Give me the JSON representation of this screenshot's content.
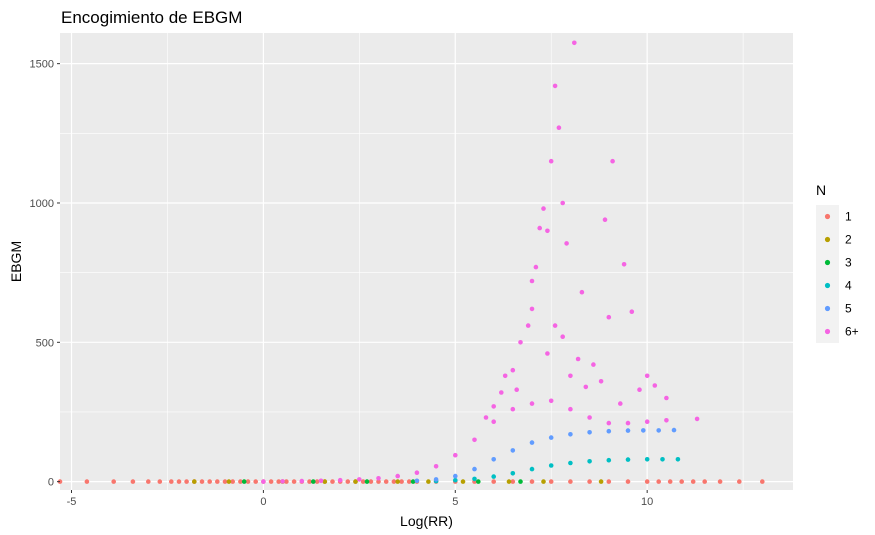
{
  "chart_data": {
    "type": "scatter",
    "title": "Encogimiento de EBGM",
    "xlabel": "Log(RR)",
    "ylabel": "EBGM",
    "xlim": [
      -5.3,
      13.8
    ],
    "ylim": [
      -30,
      1610
    ],
    "x_ticks": [
      -5,
      0,
      5,
      10
    ],
    "x_tick_labels": [
      "-5",
      "0",
      "5",
      "10"
    ],
    "y_ticks": [
      0,
      500,
      1000,
      1500
    ],
    "y_tick_labels": [
      "0",
      "500",
      "1000",
      "1500"
    ],
    "grid": true,
    "legend": {
      "title": "N",
      "position": "right"
    },
    "series": [
      {
        "name": "1",
        "color": "#F8766D",
        "points": [
          [
            -5.3,
            0
          ],
          [
            -4.6,
            0
          ],
          [
            -3.9,
            0
          ],
          [
            -3.4,
            0
          ],
          [
            -3.0,
            0
          ],
          [
            -2.7,
            0
          ],
          [
            -2.4,
            0
          ],
          [
            -2.2,
            0
          ],
          [
            -2.0,
            0
          ],
          [
            -1.8,
            0
          ],
          [
            -1.6,
            0
          ],
          [
            -1.4,
            0
          ],
          [
            -1.2,
            0
          ],
          [
            -1.0,
            0
          ],
          [
            -0.8,
            0
          ],
          [
            -0.6,
            0
          ],
          [
            -0.4,
            0
          ],
          [
            -0.2,
            0
          ],
          [
            0.0,
            0
          ],
          [
            0.2,
            0
          ],
          [
            0.4,
            0
          ],
          [
            0.6,
            0
          ],
          [
            0.8,
            0
          ],
          [
            1.0,
            0
          ],
          [
            1.2,
            0
          ],
          [
            1.4,
            0
          ],
          [
            1.6,
            0
          ],
          [
            1.8,
            0
          ],
          [
            2.0,
            0
          ],
          [
            2.2,
            0
          ],
          [
            2.4,
            0
          ],
          [
            2.6,
            0
          ],
          [
            2.8,
            0
          ],
          [
            3.0,
            0
          ],
          [
            3.2,
            0
          ],
          [
            3.4,
            0
          ],
          [
            3.6,
            0
          ],
          [
            3.8,
            0
          ],
          [
            4.0,
            0
          ],
          [
            4.5,
            0
          ],
          [
            5.0,
            0
          ],
          [
            5.5,
            0
          ],
          [
            6.0,
            0
          ],
          [
            6.5,
            0
          ],
          [
            7.0,
            0
          ],
          [
            7.5,
            0
          ],
          [
            8.0,
            0
          ],
          [
            8.5,
            0
          ],
          [
            9.0,
            0
          ],
          [
            9.5,
            0
          ],
          [
            10.0,
            0
          ],
          [
            10.3,
            0
          ],
          [
            10.6,
            0
          ],
          [
            10.9,
            0
          ],
          [
            11.2,
            0
          ],
          [
            11.5,
            0
          ],
          [
            11.9,
            0
          ],
          [
            12.4,
            0
          ],
          [
            13.0,
            0
          ]
        ]
      },
      {
        "name": "2",
        "color": "#B79F00",
        "points": [
          [
            -1.8,
            0
          ],
          [
            -0.9,
            0
          ],
          [
            0.5,
            0
          ],
          [
            1.6,
            0
          ],
          [
            2.4,
            0
          ],
          [
            3.5,
            0
          ],
          [
            4.3,
            0
          ],
          [
            5.2,
            0
          ],
          [
            6.4,
            0
          ],
          [
            7.3,
            0
          ],
          [
            8.8,
            0
          ]
        ]
      },
      {
        "name": "3",
        "color": "#00BA38",
        "points": [
          [
            -0.5,
            0
          ],
          [
            1.3,
            0
          ],
          [
            2.7,
            0
          ],
          [
            3.9,
            0
          ],
          [
            5.6,
            0
          ],
          [
            6.7,
            0
          ]
        ]
      },
      {
        "name": "4",
        "color": "#00BFC4",
        "points": [
          [
            4.5,
            2
          ],
          [
            5.0,
            5
          ],
          [
            5.5,
            10
          ],
          [
            6.0,
            18
          ],
          [
            6.5,
            30
          ],
          [
            7.0,
            45
          ],
          [
            7.5,
            58
          ],
          [
            8.0,
            67
          ],
          [
            8.5,
            73
          ],
          [
            9.0,
            77
          ],
          [
            9.5,
            79
          ],
          [
            10.0,
            80
          ],
          [
            10.4,
            80
          ],
          [
            10.8,
            80
          ]
        ]
      },
      {
        "name": "5",
        "color": "#619CFF",
        "points": [
          [
            4.0,
            3
          ],
          [
            4.5,
            8
          ],
          [
            5.0,
            20
          ],
          [
            5.5,
            45
          ],
          [
            6.0,
            80
          ],
          [
            6.5,
            112
          ],
          [
            7.0,
            140
          ],
          [
            7.5,
            158
          ],
          [
            8.0,
            170
          ],
          [
            8.5,
            177
          ],
          [
            9.0,
            181
          ],
          [
            9.5,
            183
          ],
          [
            9.9,
            184
          ],
          [
            10.3,
            184
          ],
          [
            10.7,
            185
          ]
        ]
      },
      {
        "name": "6+",
        "color": "#F564E3",
        "points": [
          [
            0.0,
            0
          ],
          [
            0.5,
            1
          ],
          [
            1.0,
            2
          ],
          [
            1.5,
            3
          ],
          [
            2.0,
            5
          ],
          [
            2.5,
            8
          ],
          [
            3.0,
            12
          ],
          [
            3.5,
            20
          ],
          [
            4.0,
            32
          ],
          [
            4.5,
            55
          ],
          [
            5.0,
            95
          ],
          [
            5.5,
            150
          ],
          [
            6.0,
            215
          ],
          [
            6.5,
            260
          ],
          [
            7.0,
            280
          ],
          [
            7.5,
            290
          ],
          [
            8.0,
            260
          ],
          [
            8.5,
            230
          ],
          [
            9.0,
            210
          ],
          [
            9.5,
            210
          ],
          [
            10.0,
            215
          ],
          [
            10.5,
            220
          ],
          [
            11.3,
            225
          ],
          [
            5.8,
            230
          ],
          [
            6.0,
            270
          ],
          [
            6.2,
            320
          ],
          [
            6.3,
            380
          ],
          [
            6.5,
            400
          ],
          [
            6.7,
            500
          ],
          [
            6.9,
            560
          ],
          [
            7.0,
            720
          ],
          [
            7.1,
            770
          ],
          [
            7.2,
            910
          ],
          [
            7.3,
            980
          ],
          [
            7.4,
            900
          ],
          [
            7.5,
            1150
          ],
          [
            7.6,
            1420
          ],
          [
            7.7,
            1270
          ],
          [
            7.8,
            1000
          ],
          [
            7.9,
            855
          ],
          [
            8.1,
            1575
          ],
          [
            8.3,
            680
          ],
          [
            8.9,
            940
          ],
          [
            9.1,
            1150
          ],
          [
            9.4,
            780
          ],
          [
            9.6,
            610
          ],
          [
            9.0,
            590
          ],
          [
            8.6,
            420
          ],
          [
            10.0,
            380
          ],
          [
            10.5,
            300
          ],
          [
            6.6,
            330
          ],
          [
            7.4,
            460
          ],
          [
            7.8,
            520
          ],
          [
            8.2,
            440
          ],
          [
            8.8,
            360
          ],
          [
            9.3,
            280
          ],
          [
            9.8,
            330
          ],
          [
            10.2,
            345
          ],
          [
            7.0,
            620
          ],
          [
            7.6,
            560
          ],
          [
            8.0,
            380
          ],
          [
            8.4,
            340
          ]
        ]
      }
    ]
  }
}
